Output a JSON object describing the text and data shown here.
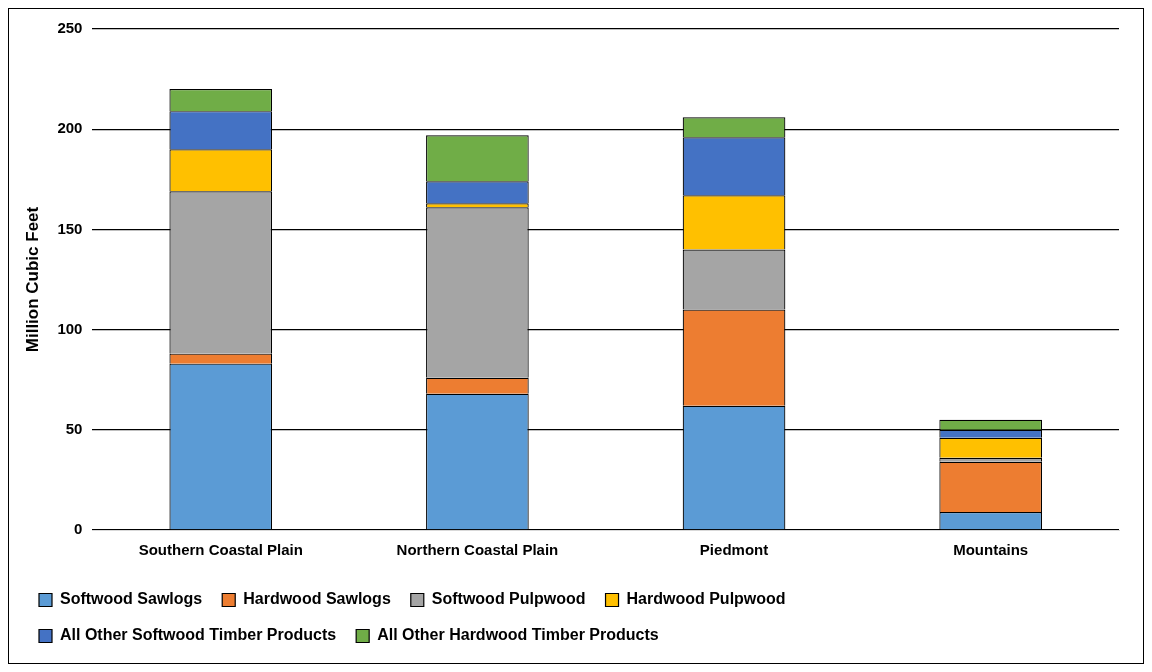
{
  "chart_data": {
    "type": "bar",
    "stacked": true,
    "ylabel": "Million Cubic Feet",
    "categories": [
      "Southern Coastal Plain",
      "Northern Coastal Plain",
      "Piedmont",
      "Mountains"
    ],
    "series": [
      {
        "name": "Softwood Sawlogs",
        "color": "#5b9bd5",
        "values": [
          83,
          68,
          62,
          9
        ]
      },
      {
        "name": "Hardwood Sawlogs",
        "color": "#ed7d31",
        "values": [
          5,
          8,
          48,
          25
        ]
      },
      {
        "name": "Softwood Pulpwood",
        "color": "#a5a5a5",
        "values": [
          81,
          85,
          30,
          2
        ]
      },
      {
        "name": "Hardwood Pulpwood",
        "color": "#ffc000",
        "values": [
          21,
          2,
          27,
          10
        ]
      },
      {
        "name": "All Other Softwood Timber Products",
        "color": "#4472c4",
        "values": [
          19,
          11,
          29,
          4
        ]
      },
      {
        "name": "All Other Hardwood Timber Products",
        "color": "#70ad47",
        "values": [
          11,
          23,
          10,
          5
        ]
      }
    ],
    "ylim": [
      0,
      250
    ],
    "yticks": [
      0,
      50,
      100,
      150,
      200,
      250
    ],
    "grid": "y",
    "legend": "bottom"
  }
}
